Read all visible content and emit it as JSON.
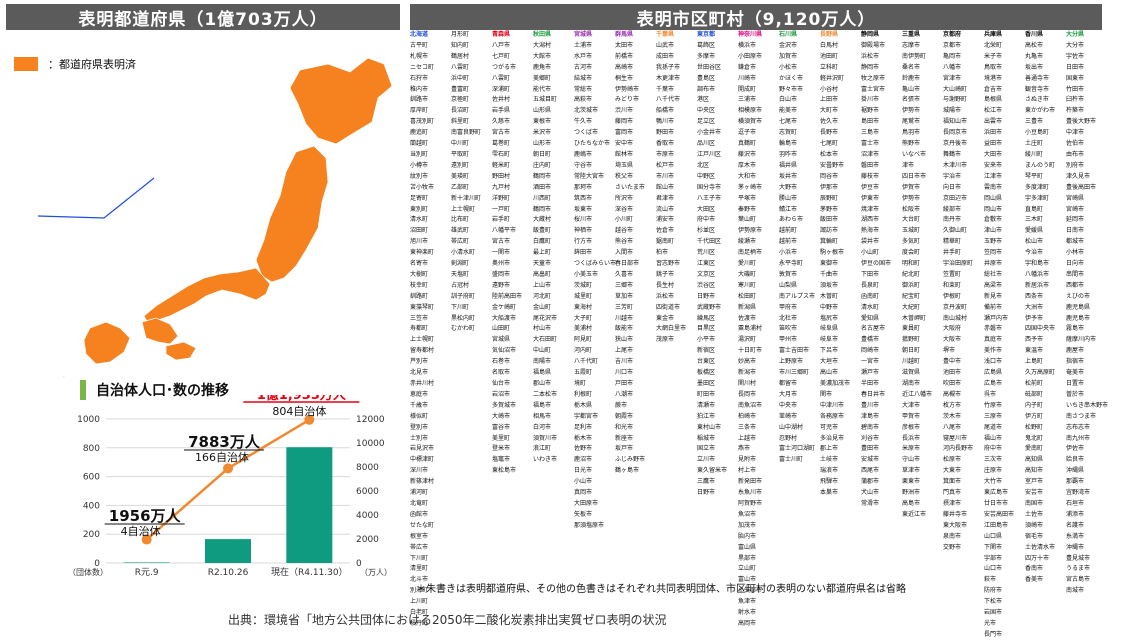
{
  "header": {
    "left_title": "表明都道府県（1億703万人）",
    "right_title": "表明市区町村（9,120万人）"
  },
  "legend": {
    "label": "：都道府県表明済",
    "color": "#f5821f"
  },
  "chart_data": {
    "type": "bar",
    "title": "自治体人口･数の推移",
    "categories": [
      "R元.9",
      "R2.10.26",
      "現在（R4.11.30）"
    ],
    "series": [
      {
        "values": [
          4,
          166,
          804
        ],
        "axis": "left",
        "labels": [
          "4自治体",
          "166自治体",
          "804自治体"
        ]
      },
      {
        "values": [
          1956,
          7883,
          11933
        ],
        "axis": "right",
        "labels": [
          "1956万人",
          "7883万人",
          "1億1,933万人"
        ]
      }
    ],
    "left_axis": {
      "ticks": [
        "0",
        "200",
        "400",
        "600",
        "800",
        "1000"
      ],
      "unit": "（団体数）",
      "range": [
        0,
        1000
      ]
    },
    "right_axis": {
      "ticks": [
        "0",
        "2000",
        "4000",
        "6000",
        "8000",
        "10000",
        "12000"
      ],
      "unit": "（万人）",
      "range": [
        0,
        12000
      ]
    },
    "colors": {
      "bars": "#0f9b80",
      "line": "#f08a32",
      "highlight": "#e60012"
    }
  },
  "municipalities": {
    "colors": {
      "default": "#111111",
      "red": "#e60012",
      "green": "#1a9b3d",
      "blue": "#1f4fd8",
      "orange": "#f08a32",
      "pink": "#e4007f",
      "purple": "#9b2fb4"
    },
    "columns": [
      {
        "header": "北海道",
        "hc": "blue",
        "items": [
          "古平町",
          "札幌市",
          "ニセコ町",
          "石狩市",
          "稚内市",
          "釧路市",
          "厚岸町",
          "喜茂別町",
          "鹿追町",
          "蘭越町",
          "当別町",
          "小樽市",
          "紋別市",
          "苫小牧市",
          "足寄町",
          "東別町",
          "清水町",
          "沼田町",
          "旭川市",
          "東神楽町",
          "名寄市",
          "大樹町",
          "枝幸町",
          "釧路町",
          "東藻琴町",
          "三笠市",
          "寿都町",
          "上士幌町",
          "留寿都村",
          "芦別市",
          "北見市",
          "赤井川村",
          "恵庭市",
          "千歳市",
          "様似町",
          "登別市",
          "士別市",
          "岩見沢市",
          "中標津町",
          "深川市",
          "新篠津村",
          "浦河町",
          "北竜町",
          "函館市",
          "せたな町",
          "根室市",
          "帯広市",
          "下川町",
          "清里町",
          "北斗市",
          "別海町",
          "上川町",
          "白老町",
          "積丹町"
        ]
      },
      {
        "header": "",
        "hc": "default",
        "items": [
          "月形町",
          "知内町",
          "鶴居村",
          "八雲町",
          "浜中町",
          "豊富町",
          "京極町",
          "長沼町",
          "斜里町",
          "南富良野町",
          "中川町",
          "平取町",
          "遠別町",
          "美瑛町",
          "乙部町",
          "新十津川町",
          "上士幌町",
          "比布町",
          "雄武町",
          "帯広町",
          "小清水町",
          "剣淵町",
          "天塩町",
          "占冠村",
          "訓子府町",
          "下川町",
          "黒松内町",
          "むかわ町"
        ]
      },
      {
        "header": "青森県",
        "hc": "red",
        "items": [
          "八戸市",
          "七戸町",
          "つがる市",
          "八雲町",
          "深浦町",
          "佐井村",
          "岩手県",
          "久慈市",
          "宮古市",
          "葛巻町",
          "雫石町",
          "軽米町",
          "野田村",
          "九戸村",
          "洋野町",
          "一戸町",
          "岩手町",
          "八幡平市",
          "宮古市",
          "一関市",
          "奥州市",
          "盛岡市",
          "遠野市",
          "陸前高田市",
          "金ケ崎町",
          "大船渡市",
          "山田町",
          "宮城県",
          "気仙沼市",
          "石巻市",
          "名取市",
          "仙台市",
          "岩沼市",
          "多賀城市",
          "大崎市",
          "富谷市",
          "美里町",
          "登米市",
          "塩竈市",
          "東松島市"
        ]
      },
      {
        "header": "秋田県",
        "hc": "green",
        "items": [
          "大潟村",
          "大館市",
          "鹿角市",
          "美郷町",
          "能代市",
          "五城目町",
          "山形県",
          "東根市",
          "米沢市",
          "山形市",
          "朝日町",
          "庄内町",
          "鶴岡市",
          "酒田市",
          "川西町",
          "鶴岡市",
          "大蔵村",
          "飯豊町",
          "白鷹町",
          "最上町",
          "天童市",
          "高畠町",
          "上山市",
          "河北町",
          "金山町",
          "尾花沢市",
          "村山市",
          "大石田町",
          "中山町",
          "南陽市",
          "福島県",
          "郡山市",
          "二本松市",
          "福島市",
          "相馬市",
          "白河市",
          "須賀川市",
          "浪江町",
          "いわき市"
        ]
      },
      {
        "header": "宮城県",
        "hc": "purple",
        "items": [
          "土浦市",
          "水戸市",
          "古河市",
          "結城市",
          "常総市",
          "高萩市",
          "北茨城市",
          "牛久市",
          "つくば市",
          "ひたちなか市",
          "鹿嶋市",
          "守谷市",
          "常陸大宮市",
          "那珂市",
          "筑西市",
          "坂東市",
          "桜川市",
          "神栖市",
          "行方市",
          "鉾田市",
          "つくばみらい市",
          "小美玉市",
          "茨城町",
          "城里町",
          "東海村",
          "大子町",
          "美浦村",
          "阿見町",
          "河内町",
          "八千代町",
          "五霞町",
          "境町",
          "利根町",
          "栃木県",
          "宇都宮市",
          "足利市",
          "栃木市",
          "佐野市",
          "鹿沼市",
          "日光市",
          "小山市",
          "真岡市",
          "大田原市",
          "矢板市",
          "那須塩原市"
        ]
      },
      {
        "header": "群馬県",
        "hc": "purple",
        "items": [
          "太田市",
          "前橋市",
          "高崎市",
          "桐生市",
          "伊勢崎市",
          "みどり市",
          "渋川市",
          "藤岡市",
          "富岡市",
          "安中市",
          "館林市",
          "埼玉県",
          "秩父市",
          "さいたま市",
          "所沢市",
          "深谷市",
          "小川町",
          "越谷市",
          "熊谷市",
          "入間市",
          "春日部市",
          "久喜市",
          "三郷市",
          "草加市",
          "三芳町",
          "川越市",
          "飯能市",
          "狭山市",
          "上尾市",
          "吉川市",
          "川口市",
          "戸田市",
          "八潮市",
          "蕨市",
          "朝霞市",
          "和光市",
          "新座市",
          "坂戸市",
          "ふじみ野市",
          "鶴ヶ島市"
        ]
      },
      {
        "header": "千葉県",
        "hc": "orange",
        "items": [
          "山武市",
          "成田市",
          "我孫子市",
          "木更津市",
          "千葉市",
          "八千代市",
          "船橋市",
          "鴨川市",
          "野田市",
          "香取市",
          "市原市",
          "松戸市",
          "市川市",
          "館山市",
          "君津市",
          "流山市",
          "浦安市",
          "佐倉市",
          "鋸南町",
          "柏市",
          "習志野市",
          "銚子市",
          "長生村",
          "浜松市",
          "四街道市",
          "東金市",
          "大網白里市",
          "茂原市"
        ]
      },
      {
        "header": "東京都",
        "hc": "blue",
        "items": [
          "葛飾区",
          "多摩市",
          "世田谷区",
          "豊島区",
          "調布市",
          "港区",
          "中央区",
          "足立区",
          "小金井市",
          "品川区",
          "江戸川区",
          "北区",
          "中野区",
          "国分寺市",
          "八王子市",
          "大田区",
          "府中市",
          "杉並区",
          "千代田区",
          "荒川区",
          "江東区",
          "文京区",
          "渋谷区",
          "日野市",
          "武蔵野市",
          "練馬区",
          "目黒区",
          "小平市",
          "新宿区",
          "台東区",
          "板橋区",
          "墨田区",
          "町田市",
          "清瀬市",
          "狛江市",
          "東村山市",
          "稲城市",
          "国立市",
          "立川市",
          "東久留米市",
          "三鷹市",
          "日野市"
        ]
      },
      {
        "header": "神奈川県",
        "hc": "pink",
        "items": [
          "横浜市",
          "小田原市",
          "鎌倉市",
          "川崎市",
          "開成町",
          "三浦市",
          "相模原市",
          "横須賀市",
          "逗子市",
          "真鶴町",
          "藤沢市",
          "厚木市",
          "大和市",
          "茅ヶ崎市",
          "平塚市",
          "秦野市",
          "葉山町",
          "伊勢原市",
          "綾瀬市",
          "南足柄市",
          "愛川町",
          "大磯町",
          "寒川町",
          "松田町",
          "新潟県",
          "佐渡市",
          "粟島浦村",
          "湯沢町",
          "十日町市",
          "妙高市",
          "新潟市",
          "関川村",
          "長岡市",
          "南魚沼市",
          "柏崎市",
          "三条市",
          "上越市",
          "燕市",
          "見附市",
          "村上市",
          "新発田市",
          "糸魚川市",
          "阿賀野市",
          "魚沼市",
          "加茂市",
          "胎内市",
          "富山県",
          "黒部市",
          "立山町",
          "富山市",
          "小矢部市",
          "魚津市",
          "射水市",
          "高岡市"
        ]
      },
      {
        "header": "石川県",
        "hc": "green",
        "items": [
          "金沢市",
          "加賀市",
          "小松市",
          "かほく市",
          "野々市市",
          "白山市",
          "能美市",
          "七尾市",
          "志賀町",
          "輪島市",
          "羽咋市",
          "福井県",
          "坂井市",
          "大野市",
          "勝山市",
          "鯖江市",
          "あわら市",
          "越前町",
          "越前市",
          "小浜市",
          "永平寺町",
          "敦賀市",
          "山梨県",
          "南アルプス市",
          "甲府市",
          "北杜市",
          "笛吹市",
          "甲州市",
          "富士吉田市",
          "上野原市",
          "市川三郷町",
          "都留市",
          "大月市",
          "中央市",
          "韮崎市",
          "山中湖村",
          "忍野村",
          "富士河口湖町",
          "富士川町"
        ]
      },
      {
        "header": "長野県",
        "hc": "orange",
        "items": [
          "白馬村",
          "池田町",
          "立科町",
          "軽井沢町",
          "小谷村",
          "上田市",
          "大町市",
          "佐久市",
          "長野市",
          "七尾町",
          "松本市",
          "安曇野市",
          "岡谷市",
          "伊那市",
          "辰野町",
          "茅野市",
          "飯田市",
          "諏訪市",
          "箕輪町",
          "駒ヶ根市",
          "東御市",
          "千曲市",
          "須坂市",
          "木曽町",
          "中野市",
          "塩尻市",
          "岐阜県",
          "岐阜市",
          "下呂市",
          "大垣市",
          "高山市",
          "美濃加茂市",
          "関市",
          "中津川市",
          "各務原市",
          "可児市",
          "多治見市",
          "郡上市",
          "土岐市",
          "瑞浪市",
          "飛騨市",
          "本巣市"
        ]
      },
      {
        "header": "静岡県",
        "hc": "default",
        "items": [
          "御殿場市",
          "浜松市",
          "静岡市",
          "牧之原市",
          "富士宮市",
          "掛川市",
          "裾野市",
          "島田市",
          "三島市",
          "富士市",
          "沼津市",
          "磐田市",
          "藤枝市",
          "伊豆市",
          "伊東市",
          "焼津市",
          "湖西市",
          "熱海市",
          "袋井市",
          "小山町",
          "伊豆の国市",
          "下田市",
          "長泉町",
          "函南町",
          "清水町",
          "愛知県",
          "名古屋市",
          "豊橋市",
          "岡崎市",
          "一宮市",
          "瀬戸市",
          "半田市",
          "春日井市",
          "豊川市",
          "津島市",
          "碧南市",
          "刈谷市",
          "豊田市",
          "安城市",
          "西尾市",
          "蒲郡市",
          "犬山市",
          "常滑市"
        ]
      },
      {
        "header": "三重県",
        "hc": "default",
        "items": [
          "志摩市",
          "南伊勢町",
          "桑名市",
          "鈴鹿市",
          "亀山市",
          "名張市",
          "伊勢市",
          "尾鷲市",
          "鳥羽市",
          "熊野市",
          "いなべ市",
          "津市",
          "四日市市",
          "伊賀市",
          "伊勢市",
          "松阪市",
          "大台町",
          "玉城町",
          "多気町",
          "度会町",
          "明和町",
          "紀北町",
          "御浜町",
          "紀宝町",
          "大紀町",
          "木曽岬町",
          "東員町",
          "菰野町",
          "朝日町",
          "川越町",
          "滋賀県",
          "湖南市",
          "近江八幡市",
          "大津市",
          "甲賀市",
          "彦根市",
          "長浜市",
          "米原市",
          "守山市",
          "草津市",
          "栗東市",
          "野洲市",
          "高島市",
          "東近江市"
        ]
      },
      {
        "header": "京都府",
        "hc": "default",
        "items": [
          "京都市",
          "亀岡市",
          "八幡市",
          "宮津市",
          "大山崎町",
          "与謝野町",
          "城陽市",
          "福知山市",
          "長岡京市",
          "京丹後市",
          "舞鶴市",
          "木津川市",
          "宇治市",
          "向日市",
          "京田辺市",
          "綾部市",
          "南丹市",
          "久御山町",
          "精華町",
          "井手町",
          "宇治田原町",
          "笠置町",
          "和束町",
          "伊根町",
          "京丹波町",
          "南山城村",
          "大阪府",
          "大阪市",
          "堺市",
          "豊中市",
          "池田市",
          "吹田市",
          "高槻市",
          "枚方市",
          "茨木市",
          "八尾市",
          "寝屋川市",
          "河内長野市",
          "松原市",
          "大東市",
          "箕面市",
          "門真市",
          "摂津市",
          "藤井寺市",
          "東大阪市",
          "泉南市",
          "交野市"
        ]
      },
      {
        "header": "兵庫県",
        "hc": "default",
        "items": [
          "北栄町",
          "米子市",
          "鳥取市",
          "境港市",
          "倉吉市",
          "島根県",
          "松江市",
          "出雲市",
          "浜田市",
          "益田市",
          "大田市",
          "安来市",
          "江津市",
          "雲南市",
          "岡山県",
          "岡山市",
          "倉敷市",
          "津山市",
          "玉野市",
          "笠岡市",
          "井原市",
          "総社市",
          "高梁市",
          "新見市",
          "備前市",
          "瀬戸内市",
          "赤磐市",
          "真庭市",
          "美作市",
          "浅口市",
          "広島県",
          "広島市",
          "呉市",
          "竹原市",
          "三原市",
          "尾道市",
          "福山市",
          "府中市",
          "三次市",
          "庄原市",
          "大竹市",
          "東広島市",
          "廿日市市",
          "安芸高田市",
          "江田島市",
          "山口県",
          "下関市",
          "宇部市",
          "山口市",
          "萩市",
          "防府市",
          "下松市",
          "岩国市",
          "光市",
          "長門市"
        ]
      },
      {
        "header": "香川県",
        "hc": "default",
        "items": [
          "高松市",
          "丸亀市",
          "坂出市",
          "善通寺市",
          "観音寺市",
          "さぬき市",
          "東かがわ市",
          "三豊市",
          "小豆島町",
          "土庄町",
          "綾川町",
          "まんのう町",
          "琴平町",
          "多度津町",
          "宇多津町",
          "直島町",
          "三木町",
          "愛媛県",
          "松山市",
          "今治市",
          "宇和島市",
          "八幡浜市",
          "新居浜市",
          "西条市",
          "大洲市",
          "伊予市",
          "四国中央市",
          "西予市",
          "東温市",
          "上島町",
          "久万高原町",
          "松前町",
          "砥部町",
          "内子町",
          "伊方町",
          "松野町",
          "鬼北町",
          "愛南町",
          "高知県",
          "高知市",
          "室戸市",
          "安芸市",
          "南国市",
          "土佐市",
          "須崎市",
          "宿毛市",
          "土佐清水市",
          "四万十市",
          "香南市",
          "香美市"
        ]
      },
      {
        "header": "大分県",
        "hc": "green",
        "items": [
          "大分市",
          "宇佐市",
          "日田市",
          "国東市",
          "竹田市",
          "臼杵市",
          "杵築市",
          "豊後大野市",
          "中津市",
          "佐伯市",
          "由布市",
          "別府市",
          "津久見市",
          "豊後高田市",
          "宮崎県",
          "宮崎市",
          "延岡市",
          "日南市",
          "都城市",
          "小林市",
          "日向市",
          "串間市",
          "西都市",
          "えびの市",
          "鹿児島県",
          "鹿児島市",
          "霧島市",
          "薩摩川内市",
          "鹿屋市",
          "指宿市",
          "奄美市",
          "日置市",
          "曽於市",
          "いちき串木野市",
          "南さつま市",
          "志布志市",
          "南九州市",
          "伊佐市",
          "姶良市",
          "沖縄県",
          "那覇市",
          "宜野湾市",
          "石垣市",
          "浦添市",
          "名護市",
          "糸満市",
          "沖縄市",
          "豊見城市",
          "うるま市",
          "宮古島市",
          "南城市"
        ]
      }
    ]
  },
  "footnote": "＊朱書きは表明都道府県、その他の色書きはそれぞれ共同表明団体、市区町村の表明のない都道府県名は省略",
  "bottom_text": "出典：環境省「地方公共団体における2050年二酸化炭素排出実質ゼロ表明の状況"
}
